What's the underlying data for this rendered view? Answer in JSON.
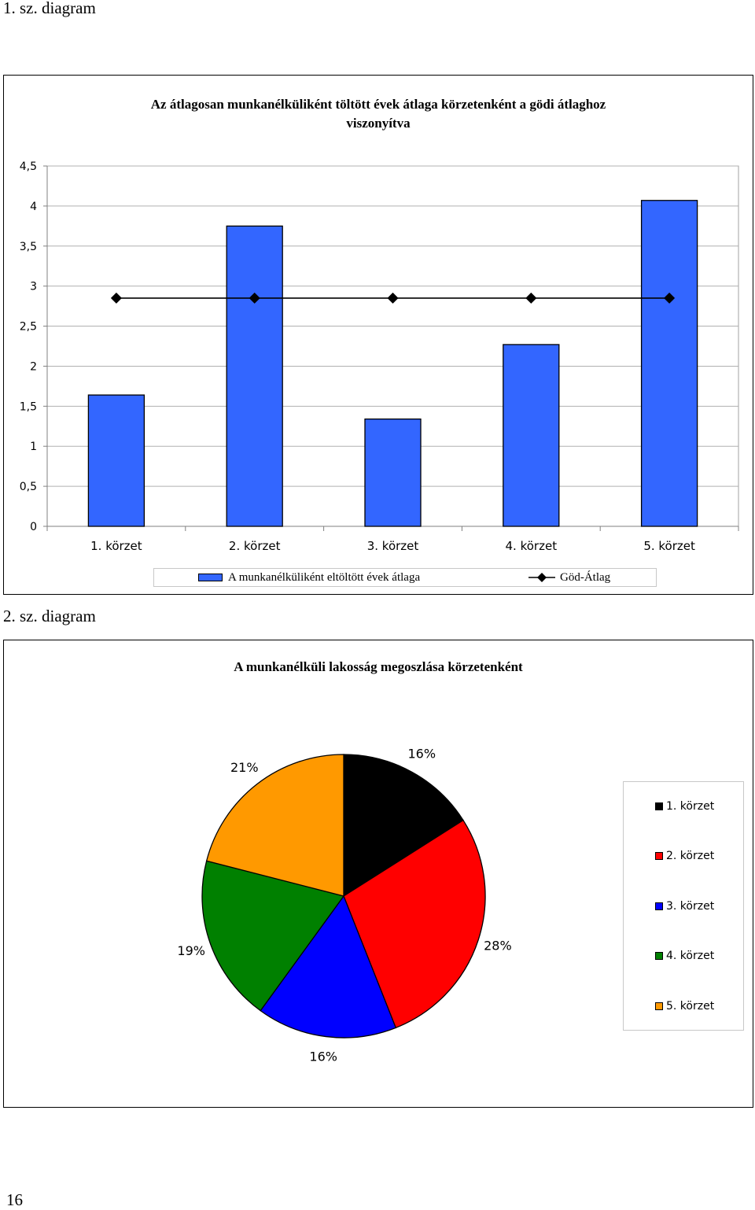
{
  "captions": {
    "first": "1. sz. diagram",
    "second": "2. sz. diagram"
  },
  "page_number": "16",
  "chart_data": [
    {
      "type": "bar",
      "title": "Az átlagosan munkanélküliként töltött évek átlaga körzetenként a gödi átlaghoz viszonyítva",
      "title_lines": [
        "Az átlagosan munkanélküliként töltött évek átlaga körzetenként a gödi átlaghoz",
        "viszonyítva"
      ],
      "categories": [
        "1. körzet",
        "2. körzet",
        "3. körzet",
        "4. körzet",
        "5. körzet"
      ],
      "ytick_labels": [
        "0",
        "0,5",
        "1",
        "1,5",
        "2",
        "2,5",
        "3",
        "3,5",
        "4",
        "4,5"
      ],
      "ylim": [
        0,
        4.5
      ],
      "grid": true,
      "legend_position": "bottom",
      "series": [
        {
          "name": "A munkanélküliként eltöltött évek átlaga",
          "kind": "bar",
          "color": "#3366ff",
          "values": [
            1.64,
            3.75,
            1.34,
            2.27,
            4.07
          ]
        },
        {
          "name": "Göd-Átlag",
          "kind": "line",
          "marker": "diamond",
          "color": "#000000",
          "values": [
            2.85,
            2.85,
            2.85,
            2.85,
            2.85
          ]
        }
      ]
    },
    {
      "type": "pie",
      "title": "A munkanélküli lakosság megoszlása körzetenként",
      "categories": [
        "1. körzet",
        "2. körzet",
        "3. körzet",
        "4. körzet",
        "5. körzet"
      ],
      "values": [
        16,
        28,
        16,
        19,
        21
      ],
      "labels": [
        "16%",
        "28%",
        "16%",
        "19%",
        "21%"
      ],
      "colors": [
        "#000000",
        "#ff0000",
        "#0000ff",
        "#008000",
        "#ff9900"
      ],
      "legend_position": "right"
    }
  ]
}
